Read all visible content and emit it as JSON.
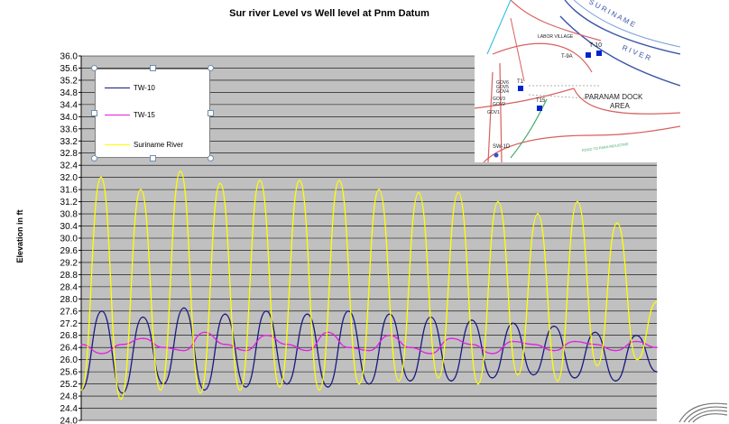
{
  "chart_data": {
    "type": "line",
    "title": "Sur river Level vs Well level at Pnm Datum",
    "xlabel": "",
    "ylabel": "Elevation in ft",
    "ylim": [
      24.0,
      36.0
    ],
    "y_ticks": [
      "24.0",
      "24.4",
      "24.8",
      "25.2",
      "25.6",
      "26.0",
      "26.4",
      "26.8",
      "27.2",
      "27.6",
      "28.0",
      "28.4",
      "28.8",
      "29.2",
      "29.6",
      "30.0",
      "30.4",
      "30.8",
      "31.2",
      "31.6",
      "32.0",
      "32.4",
      "32.8",
      "33.2",
      "33.6",
      "34.0",
      "34.4",
      "34.8",
      "35.2",
      "35.6",
      "36.0"
    ],
    "grid": true,
    "legend_position": "top-left",
    "colors": {
      "plot_background": "#c0c0c0",
      "gridline": "#000000"
    },
    "series": [
      {
        "name": "TW-10",
        "color": "#1a1a80",
        "values": [
          25.0,
          27.6,
          24.9,
          27.4,
          25.2,
          27.7,
          25.0,
          27.5,
          25.1,
          27.6,
          25.2,
          27.5,
          25.1,
          27.6,
          25.2,
          27.5,
          25.3,
          27.4,
          25.3,
          27.3,
          25.4,
          27.2,
          25.5,
          27.1,
          25.4,
          26.9,
          25.3,
          26.8,
          25.6
        ]
      },
      {
        "name": "TW-15",
        "color": "#e020e0",
        "values": [
          26.5,
          26.2,
          26.5,
          26.7,
          26.4,
          26.3,
          26.9,
          26.5,
          26.3,
          26.8,
          26.5,
          26.3,
          26.9,
          26.4,
          26.3,
          26.8,
          26.4,
          26.2,
          26.7,
          26.5,
          26.2,
          26.6,
          26.5,
          26.3,
          26.6,
          26.5,
          26.3,
          26.6,
          26.4
        ]
      },
      {
        "name": "Suriname River",
        "color": "#ffff00",
        "values": [
          25.0,
          32.0,
          24.7,
          31.6,
          25.0,
          32.2,
          24.9,
          31.8,
          25.0,
          31.9,
          25.1,
          31.9,
          25.0,
          31.9,
          25.2,
          31.6,
          25.3,
          31.5,
          25.4,
          31.5,
          25.2,
          31.2,
          25.5,
          30.8,
          25.3,
          31.2,
          25.8,
          30.5,
          26.0,
          27.9
        ]
      }
    ]
  },
  "map_inset": {
    "labels": {
      "labor_village": "LABOR VILLAGE",
      "t9a": "T-9A",
      "t10": "T-10",
      "suriname": "S U R I N A M E",
      "river": "R I V E R",
      "gov6": "GOV6",
      "gov5": "GOV5",
      "gov4": "GOV4",
      "gov3": "GOV3",
      "gov2": "GOV2",
      "gov1": "GOV1",
      "t1": "T1",
      "t15": "T15",
      "paranam_dock": "PARANAM DOCK",
      "area": "AREA",
      "sw1d": "SW-1D",
      "road": "ROAD TO PARA INDUSTRIE"
    }
  }
}
